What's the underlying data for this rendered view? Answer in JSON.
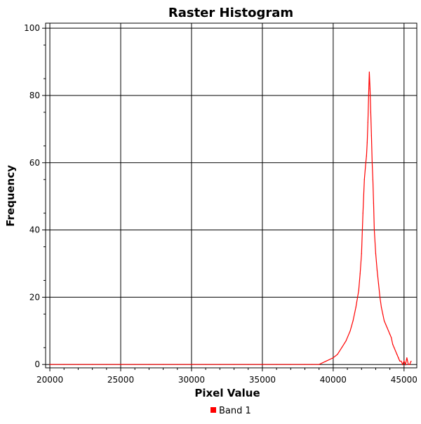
{
  "chart_data": {
    "type": "line",
    "title": "Raster Histogram",
    "xlabel": "Pixel Value",
    "ylabel": "Frequency",
    "xlim": [
      19700,
      45900
    ],
    "ylim": [
      -1.0,
      101.5
    ],
    "x_ticks": [
      20000,
      25000,
      30000,
      35000,
      40000,
      45000
    ],
    "y_ticks": [
      0,
      20,
      40,
      60,
      80,
      100
    ],
    "grid": true,
    "legend_position": "bottom-center",
    "series": [
      {
        "name": "Band 1",
        "color": "#ff0000",
        "x": [
          20000,
          21000,
          22000,
          23000,
          24000,
          25000,
          26000,
          27000,
          28000,
          29000,
          30000,
          31000,
          32000,
          33000,
          34000,
          35000,
          36000,
          37000,
          38000,
          38500,
          39000,
          39500,
          40000,
          40300,
          40600,
          40900,
          41200,
          41400,
          41600,
          41800,
          41900,
          42000,
          42100,
          42200,
          42300,
          42350,
          42400,
          42450,
          42500,
          42550,
          42600,
          42650,
          42700,
          42750,
          42800,
          42850,
          42900,
          43000,
          43100,
          43200,
          43300,
          43400,
          43500,
          43600,
          43700,
          43800,
          43900,
          44000,
          44100,
          44200,
          44300,
          44400,
          44500,
          44600,
          44700,
          44800,
          44900,
          45000,
          45100,
          45200,
          45300,
          45400,
          45500
        ],
        "y": [
          0,
          0,
          0,
          0,
          0,
          0,
          0,
          0,
          0,
          0,
          0,
          0,
          0,
          0,
          0,
          0,
          0,
          0,
          0,
          0,
          0,
          1,
          2,
          3,
          5,
          7,
          10,
          13,
          17,
          22,
          27,
          33,
          45,
          55,
          60,
          62,
          66,
          72,
          80,
          87,
          82,
          75,
          68,
          60,
          55,
          48,
          40,
          33,
          28,
          24,
          20,
          17,
          15,
          13,
          12,
          11,
          10,
          9,
          8,
          6,
          5,
          4,
          3,
          2,
          1,
          1,
          0,
          1,
          0,
          2,
          0,
          0,
          1
        ]
      }
    ]
  }
}
